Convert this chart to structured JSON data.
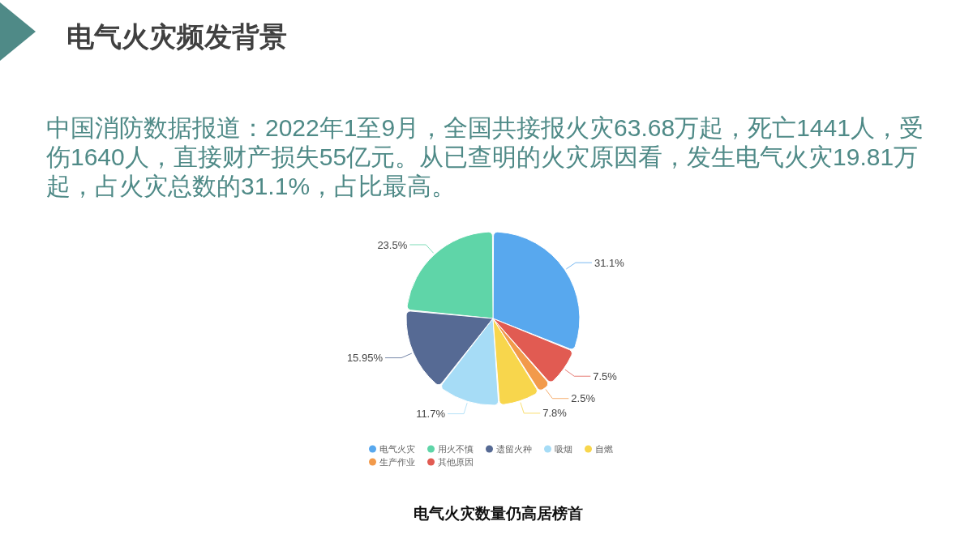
{
  "chart_data": {
    "type": "pie",
    "title": "电气火灾频发背景",
    "subtitle": "中国消防数据报道：2022年1至9月，全国共接报火灾63.68万起，死亡1441人，受伤1640人，直接财产损失55亿元。从已查明的火灾原因看，发生电气火灾19.81万起，占火灾总数的31.1%，占比最高。",
    "annotations": [
      "电气火灾数量仍高居榜首"
    ],
    "categories": [
      "电气火灾",
      "用火不慎",
      "遗留火种",
      "吸烟",
      "自燃",
      "生产作业",
      "其他原因"
    ],
    "values": [
      31.1,
      23.5,
      15.95,
      11.7,
      7.8,
      2.5,
      7.5
    ],
    "colors": [
      "#58a8ee",
      "#5fd5a8",
      "#566a94",
      "#a6dcf6",
      "#f8d64c",
      "#f29a4b",
      "#e15b52"
    ],
    "value_labels": [
      "31.1%",
      "23.5%",
      "15.95%",
      "11.7%",
      "7.8%",
      "2.5%",
      "7.5%"
    ],
    "legend": "bottom"
  }
}
